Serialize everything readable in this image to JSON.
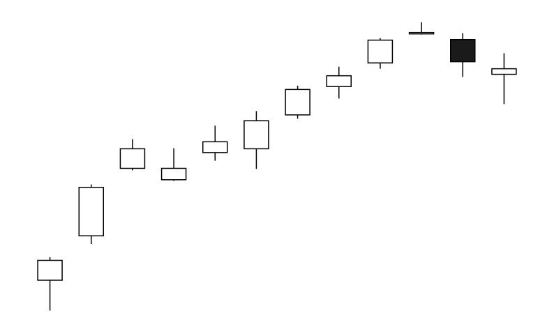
{
  "chart_data": {
    "type": "candlestick",
    "title": "",
    "xlabel": "",
    "ylabel": "",
    "axes_visible": false,
    "grid": false,
    "legend": "none",
    "ylim": [
      0,
      100
    ],
    "colors": {
      "bullish_fill": "#ffffff",
      "bearish_fill": "#1a1a1a",
      "outline": "#000000",
      "background": "#ffffff"
    },
    "candles": [
      {
        "index": 1,
        "open": 11.7,
        "high": 19.6,
        "low": 1.3,
        "close": 18.5
      },
      {
        "index": 2,
        "open": 26.9,
        "high": 44.5,
        "low": 24.1,
        "close": 43.5
      },
      {
        "index": 3,
        "open": 50.0,
        "high": 60.0,
        "low": 49.3,
        "close": 56.7
      },
      {
        "index": 4,
        "open": 46.1,
        "high": 56.9,
        "low": 45.7,
        "close": 50.0
      },
      {
        "index": 5,
        "open": 55.4,
        "high": 64.6,
        "low": 52.6,
        "close": 59.1
      },
      {
        "index": 6,
        "open": 56.7,
        "high": 69.6,
        "low": 49.8,
        "close": 66.3
      },
      {
        "index": 7,
        "open": 68.3,
        "high": 78.3,
        "low": 67.0,
        "close": 77.0
      },
      {
        "index": 8,
        "open": 78.0,
        "high": 84.8,
        "low": 73.9,
        "close": 81.7
      },
      {
        "index": 9,
        "open": 86.1,
        "high": 94.6,
        "low": 84.1,
        "close": 93.9
      },
      {
        "index": 10,
        "open": 96.1,
        "high": 100.0,
        "low": 95.8,
        "close": 96.5
      },
      {
        "index": 11,
        "open": 94.1,
        "high": 96.3,
        "low": 81.3,
        "close": 86.5
      },
      {
        "index": 12,
        "open": 82.2,
        "high": 89.4,
        "low": 72.0,
        "close": 84.1
      }
    ]
  }
}
